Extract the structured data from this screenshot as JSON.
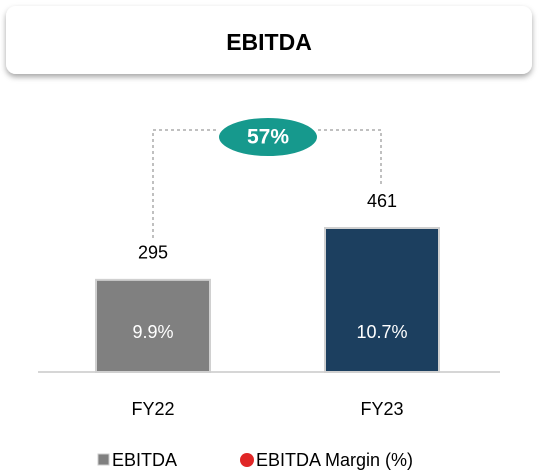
{
  "chart_data": {
    "type": "bar",
    "title": "EBITDA",
    "categories": [
      "FY22",
      "FY23"
    ],
    "series": [
      {
        "name": "EBITDA",
        "colors": [
          "#808080",
          "#1c3f5f"
        ],
        "values": [
          295,
          461
        ]
      },
      {
        "name": "EBITDA Margin (%)",
        "color": "#e02626",
        "values": [
          9.9,
          10.7
        ],
        "value_labels": [
          "9.9%",
          "10.7%"
        ]
      }
    ],
    "annotation": "57%",
    "annotation_color": "#16998d"
  }
}
